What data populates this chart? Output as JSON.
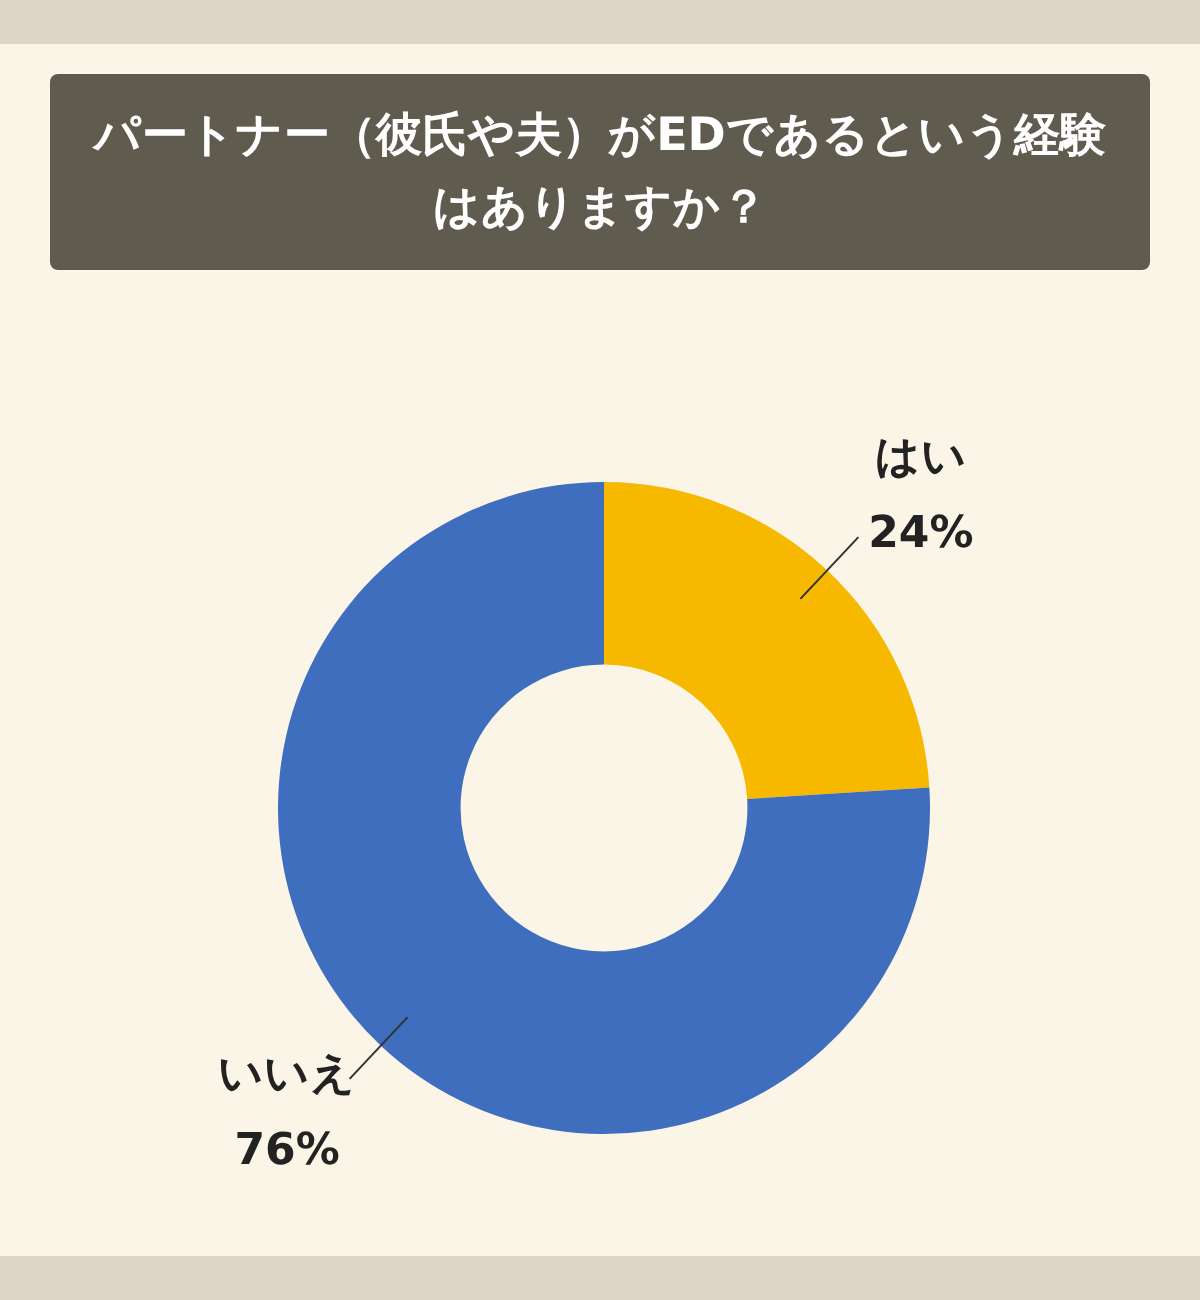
{
  "chart_data": {
    "type": "donut",
    "title": "パートナー（彼氏や夫）がEDであるという経験はありますか？",
    "categories": [
      "はい",
      "いいえ"
    ],
    "values": [
      24,
      76
    ],
    "colors": [
      "#f7b900",
      "#3f6ebe"
    ],
    "value_labels": [
      "24%",
      "76%"
    ],
    "legend": false
  }
}
